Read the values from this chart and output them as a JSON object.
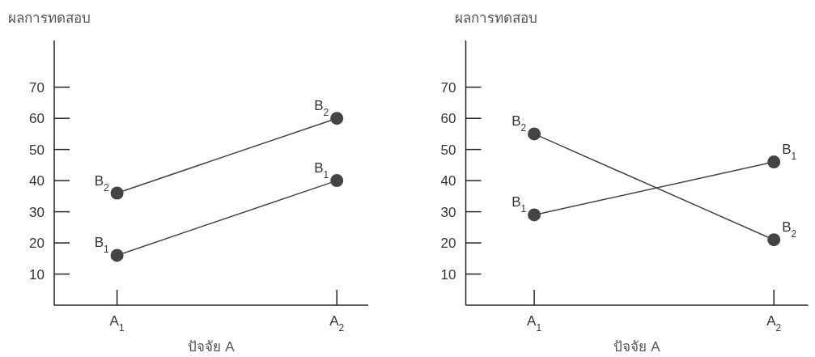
{
  "chart_data": [
    {
      "type": "line",
      "title": "ผลการทดสอบ",
      "xlabel": "ปัจจัย A",
      "categories": [
        "A$_{1}$",
        "A$_{2}$"
      ],
      "ylim": [
        0,
        85
      ],
      "yticks": [
        10,
        20,
        30,
        40,
        50,
        60,
        70
      ],
      "marker": "circle",
      "grid": false,
      "legend": false,
      "series": [
        {
          "name": "B$_{1}$",
          "color": "#444444",
          "values": [
            16,
            40
          ]
        },
        {
          "name": "B$_{2}$",
          "color": "#444444",
          "values": [
            36,
            60
          ]
        }
      ]
    },
    {
      "type": "line",
      "title": "ผลการทดสอบ",
      "xlabel": "ปัจจัย A",
      "categories": [
        "A$_{1}$",
        "A$_{2}$"
      ],
      "ylim": [
        0,
        85
      ],
      "yticks": [
        10,
        20,
        30,
        40,
        50,
        60,
        70
      ],
      "marker": "circle",
      "grid": false,
      "legend": false,
      "series": [
        {
          "name": "B$_{1}$",
          "color": "#444444",
          "values": [
            29,
            46
          ]
        },
        {
          "name": "B$_{2}$",
          "color": "#444444",
          "values": [
            55,
            21
          ]
        }
      ]
    }
  ]
}
